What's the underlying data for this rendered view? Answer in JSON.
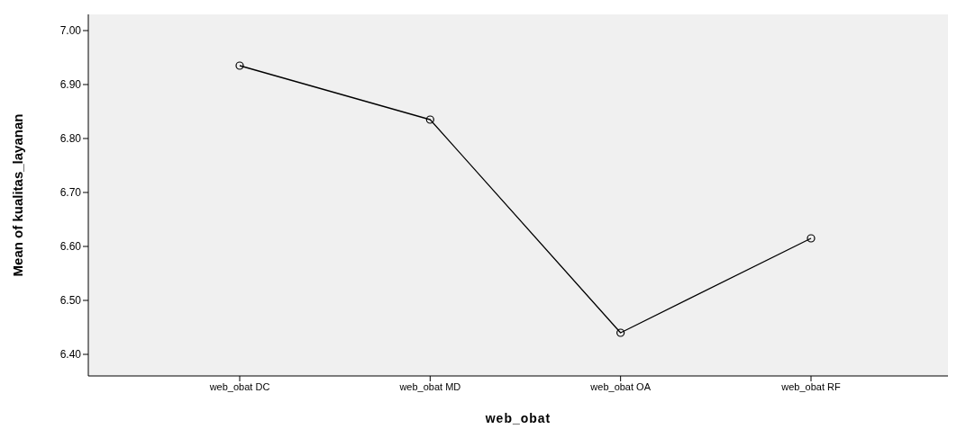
{
  "chart_data": {
    "type": "line",
    "xlabel": "web_obat",
    "ylabel": "Mean of kualitas_layanan",
    "categories": [
      "web_obat DC",
      "web_obat MD",
      "web_obat OA",
      "web_obat RF"
    ],
    "values": [
      6.935,
      6.835,
      6.44,
      6.615
    ],
    "color": "#000000",
    "marker": "circle",
    "line_style": "solid",
    "ylim": [
      6.36,
      7.03
    ],
    "yticks": [
      {
        "value": 6.4,
        "label": "6.40"
      },
      {
        "value": 6.5,
        "label": "6.50"
      },
      {
        "value": 6.6,
        "label": "6.60"
      },
      {
        "value": 6.7,
        "label": "6.70"
      },
      {
        "value": 6.8,
        "label": "6.80"
      },
      {
        "value": 6.9,
        "label": "6.90"
      },
      {
        "value": 7.0,
        "label": "7.00"
      }
    ],
    "grid": false
  }
}
